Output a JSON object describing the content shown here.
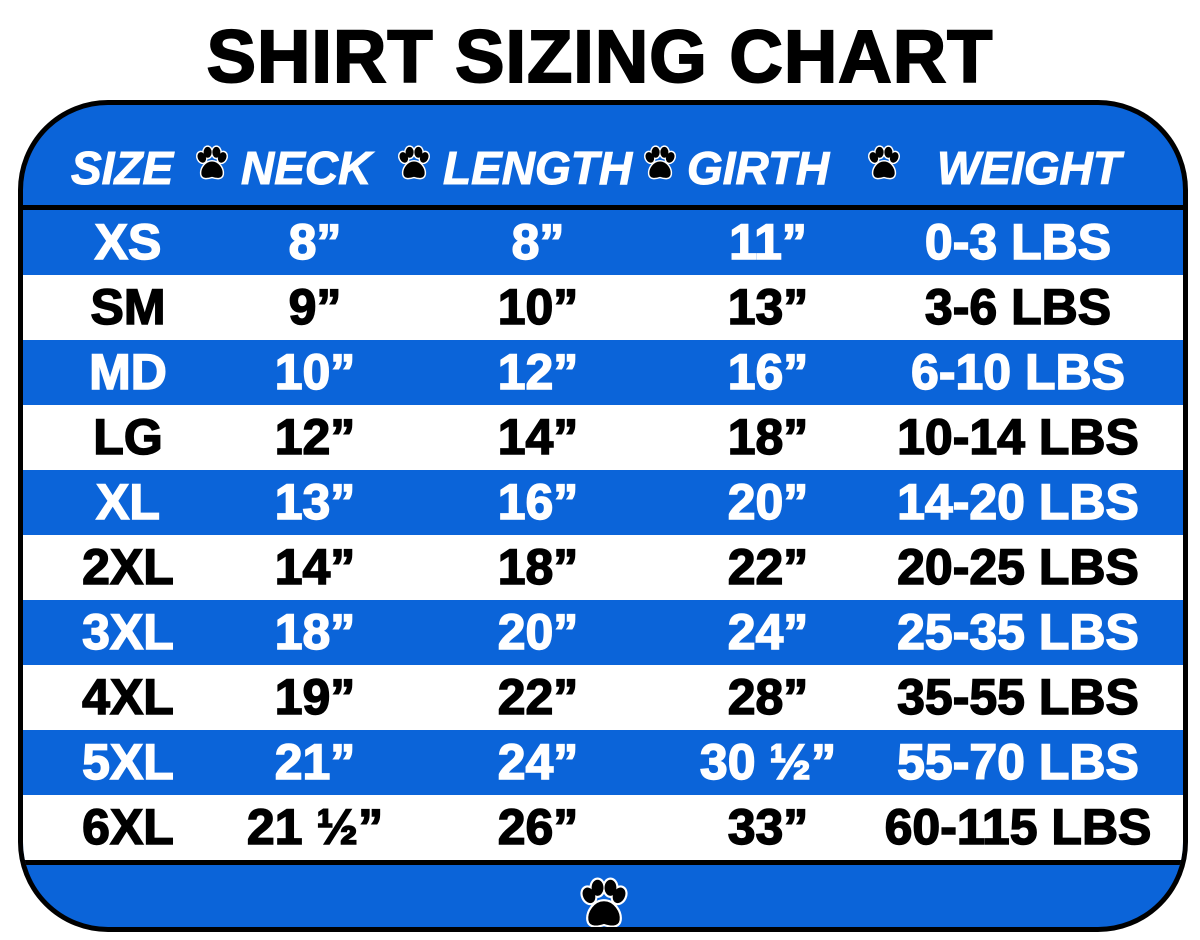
{
  "title": "SHIRT SIZING CHART",
  "colors": {
    "blue": "#0b64d9",
    "white": "#ffffff",
    "text_dark": "#000000"
  },
  "icons": {
    "separator": "paw-print-icon"
  },
  "headers": [
    "SIZE",
    "NECK",
    "LENGTH",
    "GIRTH",
    "WEIGHT"
  ],
  "rows": [
    [
      "XS",
      "8”",
      "8”",
      "11”",
      "0-3 LBS"
    ],
    [
      "SM",
      "9”",
      "10”",
      "13”",
      "3-6 LBS"
    ],
    [
      "MD",
      "10”",
      "12”",
      "16”",
      "6-10 LBS"
    ],
    [
      "LG",
      "12”",
      "14”",
      "18”",
      "10-14 LBS"
    ],
    [
      "XL",
      "13”",
      "16”",
      "20”",
      "14-20 LBS"
    ],
    [
      "2XL",
      "14”",
      "18”",
      "22”",
      "20-25 LBS"
    ],
    [
      "3XL",
      "18”",
      "20”",
      "24”",
      "25-35 LBS"
    ],
    [
      "4XL",
      "19”",
      "22”",
      "28”",
      "35-55 LBS"
    ],
    [
      "5XL",
      "21”",
      "24”",
      "30 ½”",
      "55-70 LBS"
    ],
    [
      "6XL",
      "21 ½”",
      "26”",
      "33”",
      "60-115 LBS"
    ]
  ]
}
